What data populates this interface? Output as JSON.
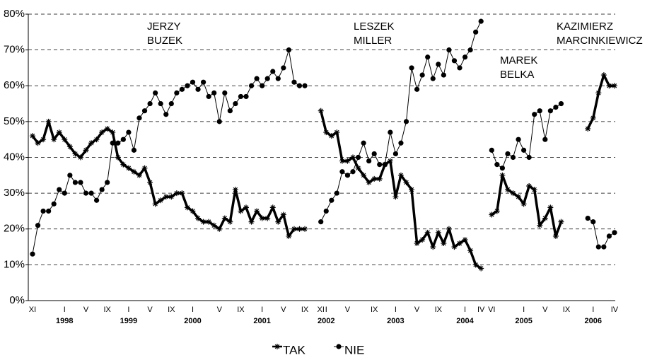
{
  "chart_data": {
    "type": "line",
    "categories": [
      "XI",
      null,
      null,
      null,
      null,
      null,
      "I",
      null,
      null,
      null,
      "V",
      null,
      null,
      null,
      "IX",
      null,
      null,
      null,
      "I",
      null,
      null,
      null,
      "V",
      null,
      null,
      null,
      "IX",
      null,
      null,
      null,
      "I",
      null,
      null,
      null,
      null,
      "V",
      null,
      null,
      null,
      "IX",
      null,
      null,
      null,
      "I",
      null,
      null,
      null,
      "V",
      null,
      null,
      null,
      "IX",
      null,
      null,
      "XI",
      "I",
      null,
      null,
      null,
      "V",
      null,
      null,
      null,
      null,
      "IX",
      null,
      null,
      null,
      "I",
      null,
      null,
      null,
      "V",
      null,
      null,
      null,
      "IX",
      null,
      null,
      null,
      null,
      "I",
      null,
      null,
      "IV",
      null,
      "VI",
      null,
      null,
      null,
      null,
      null,
      "I",
      null,
      null,
      null,
      "V",
      null,
      null,
      null,
      "IX",
      null,
      null,
      null,
      null,
      "I",
      null,
      null,
      null,
      "IV"
    ],
    "year_categories": [
      null,
      null,
      null,
      null,
      null,
      null,
      "1998",
      null,
      null,
      null,
      null,
      null,
      null,
      null,
      null,
      null,
      null,
      null,
      "1999",
      null,
      null,
      null,
      null,
      null,
      null,
      null,
      null,
      null,
      null,
      null,
      "2000",
      null,
      null,
      null,
      null,
      null,
      null,
      null,
      null,
      null,
      null,
      null,
      null,
      "2001",
      null,
      null,
      null,
      null,
      null,
      null,
      null,
      null,
      null,
      null,
      null,
      "2002",
      null,
      null,
      null,
      null,
      null,
      null,
      null,
      null,
      null,
      null,
      null,
      null,
      "2003",
      null,
      null,
      null,
      null,
      null,
      null,
      null,
      null,
      null,
      null,
      null,
      null,
      "2004",
      null,
      null,
      null,
      null,
      null,
      null,
      null,
      null,
      null,
      null,
      "2005",
      null,
      null,
      null,
      null,
      null,
      null,
      null,
      null,
      null,
      null,
      null,
      null,
      "2006",
      null,
      null,
      null,
      null
    ],
    "series": [
      {
        "name": "TAK",
        "color": "#000000",
        "marker": "star",
        "line_width": 3.5,
        "values": [
          46,
          44,
          45,
          50,
          45,
          47,
          45,
          43,
          41,
          40,
          42,
          44,
          45,
          47,
          48,
          47,
          40,
          38,
          37,
          36,
          35,
          37,
          33,
          27,
          28,
          29,
          29,
          30,
          30,
          26,
          25,
          23,
          22,
          22,
          21,
          20,
          23,
          22,
          31,
          25,
          26,
          22,
          25,
          23,
          23,
          26,
          22,
          24,
          18,
          20,
          20,
          20,
          null,
          null,
          53,
          47,
          46,
          47,
          39,
          39,
          40,
          37,
          35,
          33,
          34,
          34,
          38,
          39,
          29,
          35,
          33,
          31,
          16,
          17,
          19,
          15,
          19,
          16,
          20,
          15,
          16,
          17,
          14,
          10,
          9,
          null,
          24,
          25,
          35,
          31,
          30,
          29,
          27,
          32,
          31,
          21,
          23,
          26,
          18,
          22,
          null,
          null,
          null,
          null,
          48,
          51,
          58,
          63,
          60,
          60
        ]
      },
      {
        "name": "NIE",
        "color": "#000000",
        "marker": "circle",
        "line_width": 1,
        "values": [
          13,
          21,
          25,
          25,
          27,
          31,
          30,
          35,
          33,
          33,
          30,
          30,
          28,
          31,
          33,
          44,
          44,
          45,
          47,
          42,
          51,
          53,
          55,
          58,
          55,
          52,
          55,
          58,
          59,
          60,
          61,
          59,
          61,
          57,
          58,
          50,
          58,
          53,
          55,
          57,
          57,
          60,
          62,
          60,
          62,
          64,
          62,
          65,
          70,
          61,
          60,
          60,
          null,
          null,
          22,
          25,
          28,
          30,
          36,
          35,
          36,
          40,
          44,
          39,
          41,
          38,
          38,
          47,
          41,
          44,
          50,
          65,
          59,
          63,
          68,
          62,
          66,
          63,
          70,
          67,
          65,
          68,
          70,
          75,
          78,
          null,
          42,
          38,
          37,
          41,
          40,
          45,
          42,
          40,
          52,
          53,
          45,
          53,
          54,
          55,
          null,
          null,
          null,
          null,
          23,
          22,
          15,
          15,
          18,
          19
        ]
      }
    ],
    "annotations": [
      [
        "JERZY",
        "BUZEK"
      ],
      [
        "LESZEK",
        "MILLER"
      ],
      [
        "MAREK",
        "BELKA"
      ],
      [
        "KAZIMIERZ",
        "MARCINKIEWICZ"
      ]
    ],
    "ylim": [
      0,
      80
    ],
    "yticks": [
      {
        "value": 0,
        "label": "0%"
      },
      {
        "value": 10,
        "label": "10%"
      },
      {
        "value": 20,
        "label": "20%"
      },
      {
        "value": 30,
        "label": "30%"
      },
      {
        "value": 40,
        "label": "40%"
      },
      {
        "value": 50,
        "label": "50%"
      },
      {
        "value": 60,
        "label": "60%"
      },
      {
        "value": 70,
        "label": "70%"
      },
      {
        "value": 80,
        "label": "80%"
      }
    ],
    "grid": true,
    "grid_style": "dashed",
    "legend": "bottom"
  }
}
